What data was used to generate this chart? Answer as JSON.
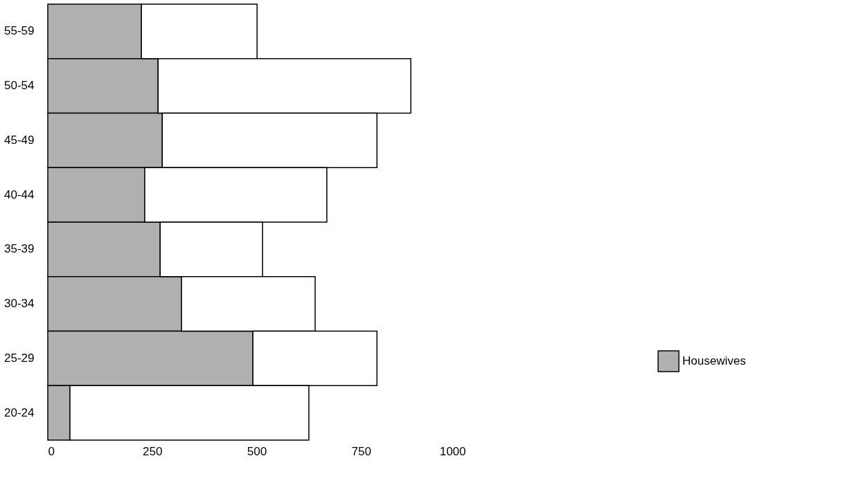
{
  "chart_data": {
    "type": "bar",
    "orientation": "horizontal",
    "stacked": true,
    "categories": [
      "55-59",
      "50-54",
      "45-49",
      "40-44",
      "35-39",
      "30-34",
      "25-29",
      "20-24"
    ],
    "series": [
      {
        "name": "Housewives",
        "color": "#b0b0b0",
        "values": [
          224,
          264,
          274,
          232,
          269,
          320,
          491,
          53
        ]
      },
      {
        "color": "#ffffff",
        "values": [
          277,
          605,
          514,
          436,
          245,
          320,
          297,
          572
        ]
      }
    ],
    "xlim": [
      0,
      1000
    ],
    "xticks": [
      0,
      250,
      500,
      750,
      1000
    ],
    "grid": false,
    "legend": "bottom right"
  }
}
